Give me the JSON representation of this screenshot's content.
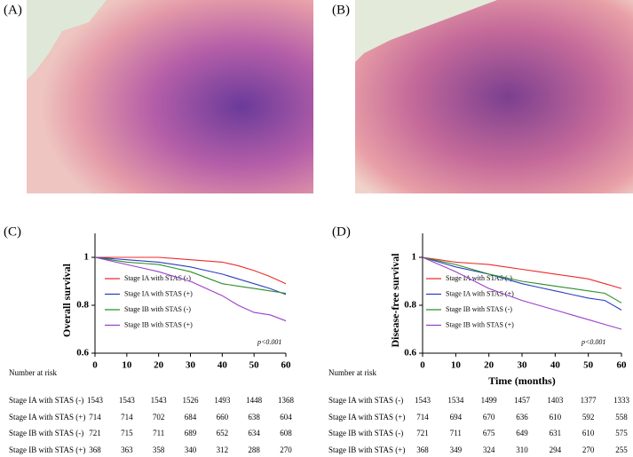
{
  "images": [
    {
      "label": "(A)"
    },
    {
      "label": "(B)"
    }
  ],
  "chart_data": [
    {
      "type": "line",
      "panel_label": "(C)",
      "y_label": "Overall survival",
      "p_value_label": "p<0.001",
      "xlim": [
        0,
        60
      ],
      "xticks": [
        0,
        10,
        20,
        30,
        40,
        50,
        60
      ],
      "ylim": [
        0.6,
        1.1
      ],
      "yticks": [
        0.6,
        0.8,
        1.0
      ],
      "risk_title": "Number at risk",
      "x": [
        0,
        5,
        10,
        15,
        20,
        25,
        30,
        35,
        40,
        45,
        50,
        55,
        60
      ],
      "series": [
        {
          "name": "Stage IA with STAS (-)",
          "color": "#ee2b2b",
          "values": [
            1,
            1,
            1,
            1,
            1,
            0.995,
            0.99,
            0.985,
            0.98,
            0.965,
            0.945,
            0.92,
            0.89
          ],
          "at_risk": [
            1543,
            1543,
            1543,
            1526,
            1493,
            1448,
            1368
          ]
        },
        {
          "name": "Stage IA with STAS (+)",
          "color": "#2b3fbf",
          "values": [
            1,
            0.995,
            0.99,
            0.985,
            0.98,
            0.97,
            0.96,
            0.945,
            0.93,
            0.91,
            0.89,
            0.87,
            0.845
          ],
          "at_risk": [
            714,
            714,
            702,
            684,
            660,
            638,
            604
          ]
        },
        {
          "name": "Stage IB with STAS (-)",
          "color": "#2a8f2a",
          "values": [
            1,
            0.99,
            0.98,
            0.975,
            0.97,
            0.955,
            0.94,
            0.915,
            0.89,
            0.88,
            0.87,
            0.86,
            0.85
          ],
          "at_risk": [
            721,
            715,
            711,
            689,
            652,
            634,
            608
          ]
        },
        {
          "name": "Stage IB with STAS (+)",
          "color": "#9b3fc9",
          "values": [
            1,
            0.985,
            0.97,
            0.955,
            0.94,
            0.92,
            0.9,
            0.87,
            0.84,
            0.8,
            0.77,
            0.76,
            0.735
          ],
          "at_risk": [
            368,
            363,
            358,
            340,
            312,
            288,
            270
          ]
        }
      ]
    },
    {
      "type": "line",
      "panel_label": "(D)",
      "y_label": "Disease-free survival",
      "x_label": "Time (months)",
      "p_value_label": "p<0.001",
      "xlim": [
        0,
        60
      ],
      "xticks": [
        0,
        10,
        20,
        30,
        40,
        50,
        60
      ],
      "ylim": [
        0.6,
        1.1
      ],
      "yticks": [
        0.6,
        0.8,
        1.0
      ],
      "risk_title": "Number at risk",
      "x": [
        0,
        5,
        10,
        15,
        20,
        25,
        30,
        35,
        40,
        45,
        50,
        55,
        60
      ],
      "series": [
        {
          "name": "Stage IA with STAS (-)",
          "color": "#ee2b2b",
          "values": [
            1,
            0.99,
            0.98,
            0.975,
            0.97,
            0.96,
            0.95,
            0.94,
            0.93,
            0.92,
            0.91,
            0.89,
            0.87
          ],
          "at_risk": [
            1543,
            1534,
            1499,
            1457,
            1403,
            1377,
            1333
          ]
        },
        {
          "name": "Stage IA with STAS (+)",
          "color": "#2b3fbf",
          "values": [
            1,
            0.98,
            0.96,
            0.945,
            0.93,
            0.91,
            0.89,
            0.875,
            0.86,
            0.845,
            0.83,
            0.82,
            0.78
          ],
          "at_risk": [
            714,
            694,
            670,
            636,
            610,
            592,
            558
          ]
        },
        {
          "name": "Stage IB with STAS (-)",
          "color": "#2a8f2a",
          "values": [
            1,
            0.985,
            0.97,
            0.95,
            0.93,
            0.915,
            0.9,
            0.89,
            0.88,
            0.87,
            0.86,
            0.85,
            0.81
          ],
          "at_risk": [
            721,
            711,
            675,
            649,
            631,
            610,
            575
          ]
        },
        {
          "name": "Stage IB with STAS (+)",
          "color": "#9b3fc9",
          "values": [
            1,
            0.97,
            0.94,
            0.905,
            0.87,
            0.845,
            0.82,
            0.8,
            0.78,
            0.76,
            0.74,
            0.72,
            0.7
          ],
          "at_risk": [
            368,
            349,
            324,
            310,
            294,
            270,
            255
          ]
        }
      ]
    }
  ]
}
